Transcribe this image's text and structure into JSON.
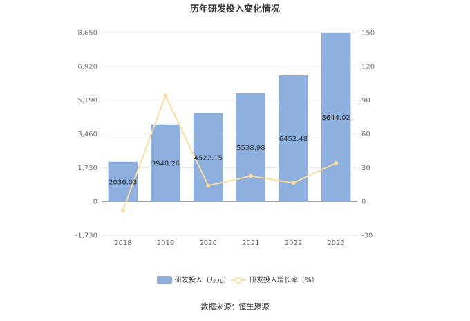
{
  "chart_data": {
    "type": "bar",
    "title": "历年研发投入变化情况",
    "categories": [
      "2018",
      "2019",
      "2020",
      "2021",
      "2022",
      "2023"
    ],
    "series": [
      {
        "name": "研发投入（万元）",
        "type": "bar",
        "axis": "left",
        "values": [
          2036.03,
          3948.26,
          4522.15,
          5538.98,
          6452.48,
          8644.02
        ],
        "labels": [
          "2036.03",
          "3948.26",
          "4522.15",
          "5538.98",
          "6452.48",
          "8644.02"
        ],
        "color": "#8eb0de"
      },
      {
        "name": "研发投入增长率（%）",
        "type": "line",
        "axis": "right",
        "values": [
          -8,
          94,
          14,
          22.5,
          16.5,
          34
        ],
        "color": "#fbdca0"
      }
    ],
    "left_axis": {
      "ylim": [
        -1730,
        8650
      ],
      "ticks": [
        "-1,730",
        "0",
        "1,730",
        "3,460",
        "5,190",
        "6,920",
        "8,650"
      ]
    },
    "right_axis": {
      "ylim": [
        -30,
        150
      ],
      "ticks": [
        "-30",
        "0",
        "30",
        "60",
        "90",
        "120",
        "150"
      ]
    },
    "grid": true,
    "legend": "bottom"
  },
  "footer": {
    "source": "数据来源：恒生聚源"
  }
}
